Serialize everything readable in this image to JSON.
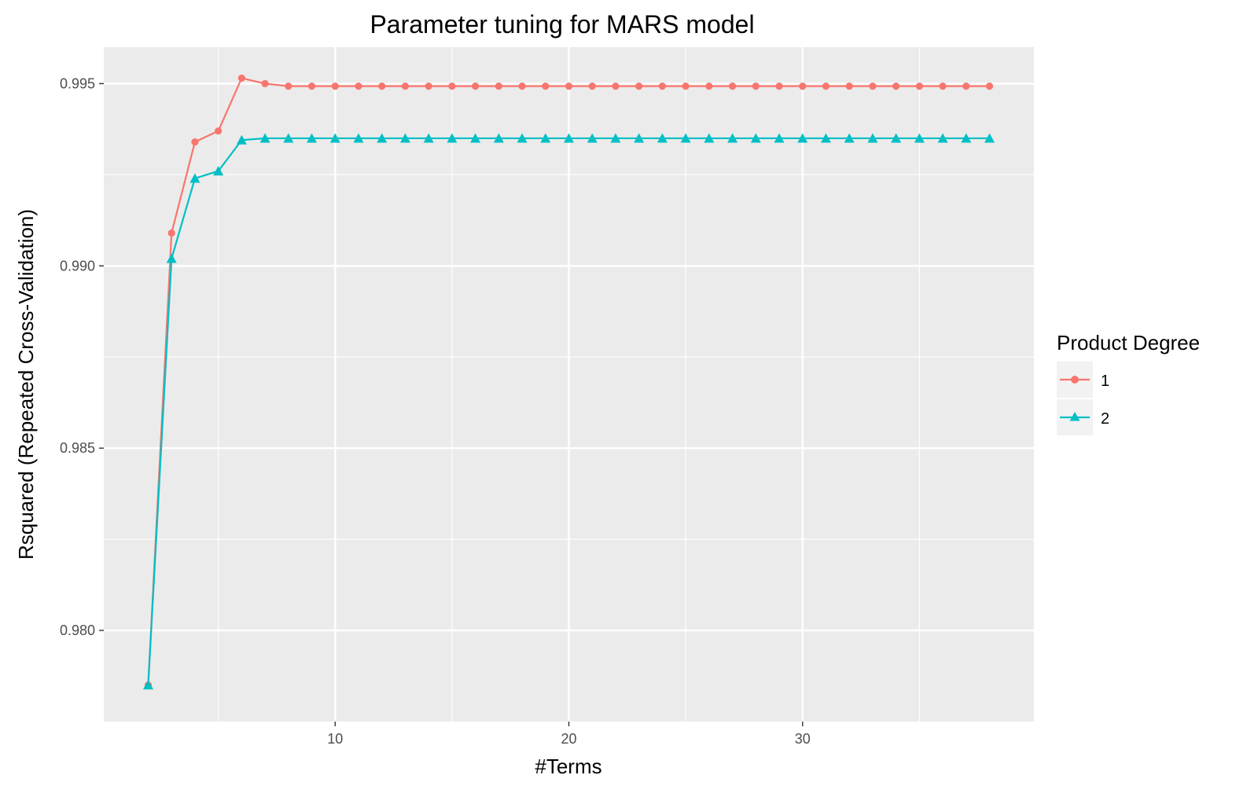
{
  "chart_data": {
    "type": "line",
    "title": "Parameter tuning for MARS model",
    "xlabel": "#Terms",
    "ylabel": "Rsquared (Repeated Cross-Validation)",
    "xlim": [
      0.1,
      39.9
    ],
    "ylim": [
      0.9775,
      0.996
    ],
    "x_ticks": [
      10,
      20,
      30
    ],
    "x_tick_labels": [
      "10",
      "20",
      "30"
    ],
    "y_ticks": [
      0.98,
      0.985,
      0.99,
      0.995
    ],
    "y_tick_labels": [
      "0.980",
      "0.985",
      "0.990",
      "0.995"
    ],
    "grid": true,
    "legend": {
      "title": "Product Degree",
      "position": "right"
    },
    "x": [
      2,
      3,
      4,
      5,
      6,
      7,
      8,
      9,
      10,
      11,
      12,
      13,
      14,
      15,
      16,
      17,
      18,
      19,
      20,
      21,
      22,
      23,
      24,
      25,
      26,
      27,
      28,
      29,
      30,
      31,
      32,
      33,
      34,
      35,
      36,
      37,
      38
    ],
    "series": [
      {
        "name": "1",
        "color": "#F8766D",
        "marker": "circle",
        "values": [
          0.9785,
          0.9909,
          0.9934,
          0.9937,
          0.99515,
          0.995,
          0.99493,
          0.99493,
          0.99493,
          0.99493,
          0.99493,
          0.99493,
          0.99493,
          0.99493,
          0.99493,
          0.99493,
          0.99493,
          0.99493,
          0.99493,
          0.99493,
          0.99493,
          0.99493,
          0.99493,
          0.99493,
          0.99493,
          0.99493,
          0.99493,
          0.99493,
          0.99493,
          0.99493,
          0.99493,
          0.99493,
          0.99493,
          0.99493,
          0.99493,
          0.99493,
          0.99493
        ]
      },
      {
        "name": "2",
        "color": "#00BFC4",
        "marker": "triangle",
        "values": [
          0.9785,
          0.9902,
          0.9924,
          0.9926,
          0.99345,
          0.9935,
          0.9935,
          0.9935,
          0.9935,
          0.9935,
          0.9935,
          0.9935,
          0.9935,
          0.9935,
          0.9935,
          0.9935,
          0.9935,
          0.9935,
          0.9935,
          0.9935,
          0.9935,
          0.9935,
          0.9935,
          0.9935,
          0.9935,
          0.9935,
          0.9935,
          0.9935,
          0.9935,
          0.9935,
          0.9935,
          0.9935,
          0.9935,
          0.9935,
          0.9935,
          0.9935,
          0.9935
        ]
      }
    ]
  }
}
